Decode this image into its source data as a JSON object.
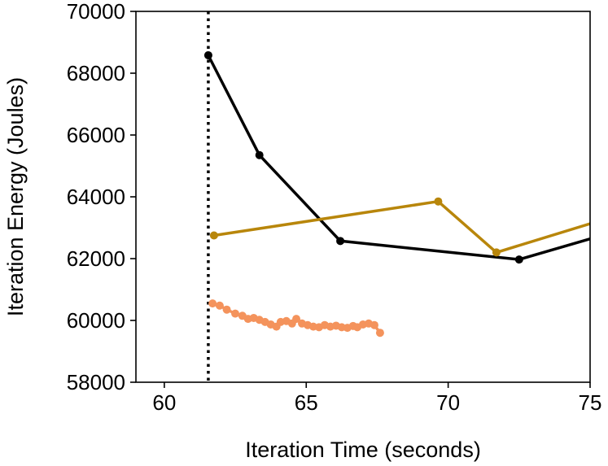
{
  "chart_data": {
    "type": "line",
    "title": "",
    "xlabel": "Iteration Time (seconds)",
    "ylabel": "Iteration Energy (Joules)",
    "xlim": [
      59,
      75
    ],
    "ylim": [
      58000,
      70000
    ],
    "xticks": [
      60,
      65,
      70,
      75
    ],
    "xtick_labels": [
      "60",
      "65",
      "70",
      "75"
    ],
    "yticks": [
      58000,
      60000,
      62000,
      64000,
      66000,
      68000,
      70000
    ],
    "ytick_labels": [
      "58000",
      "60000",
      "62000",
      "64000",
      "66000",
      "68000",
      "70000"
    ],
    "grid": false,
    "legend": "none",
    "reference_line": {
      "orientation": "vertical",
      "x": 61.55,
      "style": "dotted",
      "color": "#000000"
    },
    "series": [
      {
        "color": "#000000",
        "x": [
          61.55,
          63.35,
          66.2,
          72.5,
          75.6
        ],
        "y": [
          68580,
          65350,
          62570,
          61970,
          62800
        ]
      },
      {
        "color": "#b8860b",
        "x": [
          61.75,
          69.65,
          71.7,
          75.6
        ],
        "y": [
          62750,
          63850,
          62200,
          63300
        ]
      },
      {
        "color": "#f4935c",
        "x": [
          61.7,
          61.95,
          62.2,
          62.5,
          62.75,
          62.95,
          63.15,
          63.35,
          63.55,
          63.75,
          63.95,
          64.1,
          64.3,
          64.5,
          64.65,
          64.85,
          65.05,
          65.25,
          65.45,
          65.65,
          65.85,
          66.05,
          66.25,
          66.45,
          66.65,
          66.8,
          67.0,
          67.2,
          67.4,
          67.6
        ],
        "y": [
          60550,
          60480,
          60350,
          60220,
          60150,
          60050,
          60080,
          60020,
          59950,
          59870,
          59800,
          59950,
          59980,
          59900,
          60050,
          59900,
          59850,
          59800,
          59780,
          59850,
          59800,
          59830,
          59780,
          59760,
          59820,
          59780,
          59870,
          59900,
          59850,
          59600
        ]
      }
    ]
  }
}
